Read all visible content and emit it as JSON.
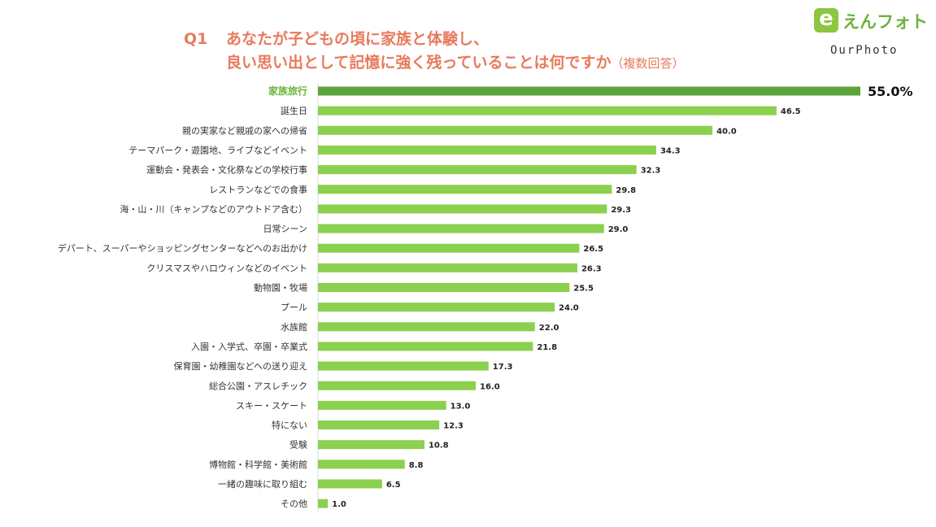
{
  "header": {
    "question_number": "Q1",
    "title_line1": "あなたが子どもの頃に家族と体験し、",
    "title_line2": "良い思い出として記憶に強く残っていることは何ですか",
    "title_note": "（複数回答）"
  },
  "logo": {
    "text": "えんフォト",
    "sub": "OurPhoto"
  },
  "colors": {
    "highlight_bar": "#5ca43b",
    "bar": "#8bd04e",
    "highlight_label": "#6cb33f",
    "title": "#e87a5d"
  },
  "chart_data": {
    "type": "bar",
    "orientation": "horizontal",
    "unit": "%",
    "categories": [
      "家族旅行",
      "誕生日",
      "親の実家など親戚の家への帰省",
      "テーマパーク・遊園地、ライブなどイベント",
      "運動会・発表会・文化祭などの学校行事",
      "レストランなどでの食事",
      "海・山・川（キャンプなどのアウトドア含む）",
      "日常シーン",
      "デパート、スーパーやショッピングセンターなどへのお出かけ",
      "クリスマスやハロウィンなどのイベント",
      "動物園・牧場",
      "プール",
      "水族館",
      "入園・入学式、卒園・卒業式",
      "保育園・幼稚園などへの送り迎え",
      "総合公園・アスレチック",
      "スキー・スケート",
      "特にない",
      "受験",
      "博物館・科学館・美術館",
      "一緒の趣味に取り組む",
      "その他"
    ],
    "values": [
      55.0,
      46.5,
      40.0,
      34.3,
      32.3,
      29.8,
      29.3,
      29.0,
      26.5,
      26.3,
      25.5,
      24.0,
      22.0,
      21.8,
      17.3,
      16.0,
      13.0,
      12.3,
      10.8,
      8.8,
      6.5,
      1.0
    ],
    "value_labels": [
      "55.0%",
      "46.5",
      "40.0",
      "34.3",
      "32.3",
      "29.8",
      "29.3",
      "29.0",
      "26.5",
      "26.3",
      "25.5",
      "24.0",
      "22.0",
      "21.8",
      "17.3",
      "16.0",
      "13.0",
      "12.3",
      "10.8",
      "8.8",
      "6.5",
      "1.0"
    ],
    "highlight_index": 0,
    "xlim": [
      0,
      55
    ],
    "grid": false,
    "legend": false
  }
}
